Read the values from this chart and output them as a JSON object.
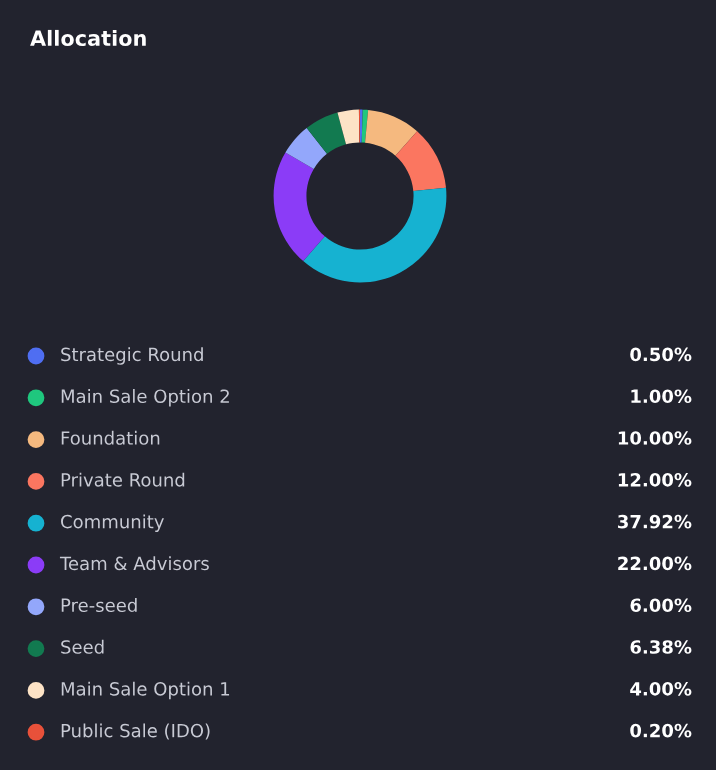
{
  "chart_data": {
    "type": "donut",
    "title": "Allocation",
    "categories": [
      "Strategic Round",
      "Main Sale Option 2",
      "Foundation",
      "Private Round",
      "Community",
      "Team & Advisors",
      "Pre-seed",
      "Seed",
      "Main Sale Option 1",
      "Public Sale (IDO)"
    ],
    "values": [
      0.5,
      1,
      10,
      12,
      37.92,
      22,
      6,
      6.38,
      4,
      0.2
    ],
    "colors": [
      "#4f6ef2",
      "#1fc77e",
      "#f5b97f",
      "#fb7660",
      "#16b2d1",
      "#8b3cf7",
      "#93a7fb",
      "#127a50",
      "#fde3c6",
      "#e8513a"
    ],
    "value_labels": [
      "0.50%",
      "1.00%",
      "10.00%",
      "12.00%",
      "37.92%",
      "22.00%",
      "6.00%",
      "6.38%",
      "4.00%",
      "0.20%"
    ],
    "legend": "bottom"
  }
}
